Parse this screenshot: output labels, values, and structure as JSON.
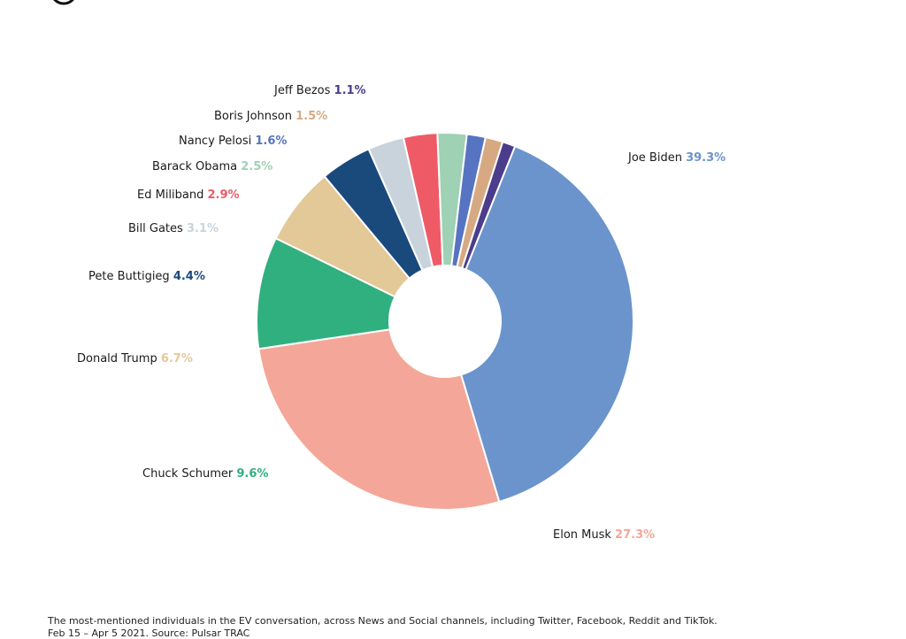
{
  "chart_data": {
    "type": "pie",
    "donut": true,
    "categories": [
      "Joe Biden",
      "Elon Musk",
      "Chuck Schumer",
      "Donald Trump",
      "Pete Buttigieg",
      "Bill Gates",
      "Ed Miliband",
      "Barack Obama",
      "Nancy Pelosi",
      "Boris Johnson",
      "Jeff Bezos"
    ],
    "values": [
      39.3,
      27.3,
      9.6,
      6.7,
      4.4,
      3.1,
      2.9,
      2.5,
      1.6,
      1.5,
      1.1
    ],
    "value_labels": [
      "39.3%",
      "27.3%",
      "9.6%",
      "6.7%",
      "4.4%",
      "3.1%",
      "2.9%",
      "2.5%",
      "1.6%",
      "1.5%",
      "1.1%"
    ],
    "colors": [
      "#6b94cc",
      "#f4a798",
      "#30b07f",
      "#e3c898",
      "#1a4a7c",
      "#c9d3dc",
      "#ee5b66",
      "#9fd1b4",
      "#5674c1",
      "#d7a982",
      "#4b3c8c"
    ]
  },
  "footnote": "The most-mentioned individuals in the EV conversation, across News and Social channels, including Twitter, Facebook, Reddit and TikTok.",
  "footnote_line2": "Feb 15 – Apr 5 2021. Source: Pulsar TRAC"
}
